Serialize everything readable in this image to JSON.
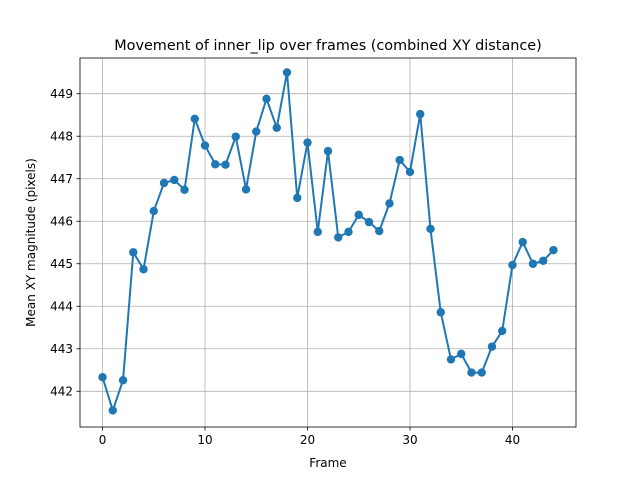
{
  "chart_data": {
    "type": "line",
    "title": "Movement of inner_lip over frames (combined XY distance)",
    "xlabel": "Frame",
    "ylabel": "Mean XY magnitude (pixels)",
    "xlim": [
      -2.2,
      46.2
    ],
    "ylim": [
      441.16,
      449.84
    ],
    "xticks": [
      0,
      10,
      20,
      30,
      40
    ],
    "yticks": [
      442,
      443,
      444,
      445,
      446,
      447,
      448,
      449
    ],
    "grid": true,
    "colors": {
      "line": "#1f77b4",
      "grid": "#b0b0b0"
    },
    "series": [
      {
        "marker": "circle",
        "x": [
          0,
          1,
          2,
          3,
          4,
          5,
          6,
          7,
          8,
          9,
          10,
          11,
          12,
          13,
          14,
          15,
          16,
          17,
          18,
          19,
          20,
          21,
          22,
          23,
          24,
          25,
          26,
          27,
          28,
          29,
          30,
          31,
          32,
          33,
          34,
          35,
          36,
          37,
          38,
          39,
          40,
          41,
          42,
          43,
          44
        ],
        "y": [
          442.33,
          441.55,
          442.26,
          445.27,
          444.87,
          446.24,
          446.9,
          446.97,
          446.74,
          448.41,
          447.78,
          447.34,
          447.33,
          447.99,
          446.75,
          448.11,
          448.88,
          448.2,
          449.5,
          446.55,
          447.85,
          445.75,
          447.65,
          445.62,
          445.75,
          446.15,
          445.98,
          445.77,
          446.42,
          447.44,
          447.16,
          448.52,
          445.82,
          443.86,
          442.75,
          442.88,
          442.44,
          442.44,
          443.05,
          443.42,
          444.97,
          445.51,
          445.0,
          445.07,
          445.32
        ]
      }
    ]
  }
}
